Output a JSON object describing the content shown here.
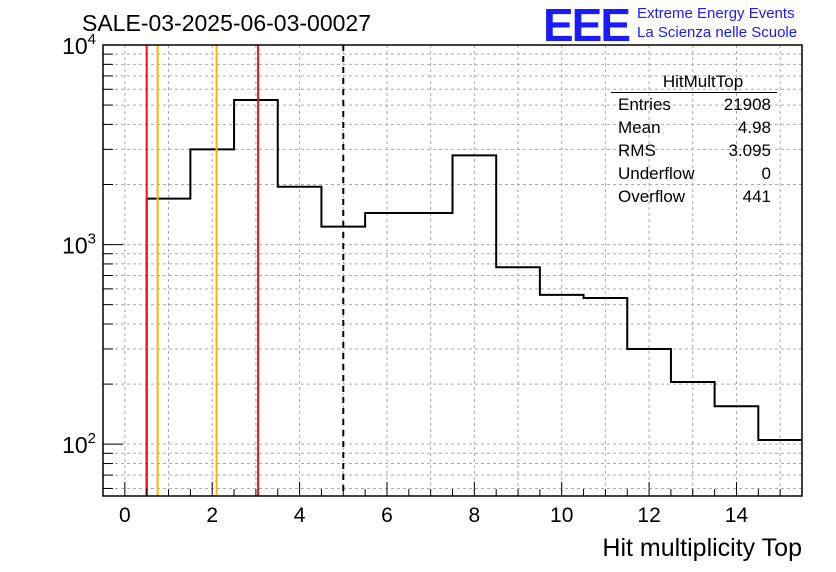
{
  "header": {
    "title": "SALE-03-2025-06-03-00027",
    "logo": "EEE",
    "logo_line1": "Extreme Energy Events",
    "logo_line2": "La Scienza nelle Scuole"
  },
  "stats_box": {
    "title": "HitMultTop",
    "rows": [
      {
        "label": "Entries",
        "value": "21908"
      },
      {
        "label": "Mean",
        "value": "4.98"
      },
      {
        "label": "RMS",
        "value": "3.095"
      },
      {
        "label": "Underflow",
        "value": "0"
      },
      {
        "label": "Overflow",
        "value": "441"
      }
    ]
  },
  "colors": {
    "red_line": "#e8141c",
    "orange_line": "#f5b800",
    "histogram": "#000000",
    "grid": "#aaaaaa"
  },
  "chart_data": {
    "type": "histogram",
    "title": "SALE-03-2025-06-03-00027",
    "xlabel": "Hit multiplicity Top",
    "ylabel": "",
    "xlim": [
      -0.5,
      15.5
    ],
    "ylim": [
      55,
      10000
    ],
    "y_scale": "log",
    "grid": true,
    "x_ticks": [
      0,
      2,
      4,
      6,
      8,
      10,
      12,
      14
    ],
    "y_ticks": [
      {
        "base": "10",
        "exp": "2",
        "value": 100
      },
      {
        "base": "10",
        "exp": "3",
        "value": 1000
      },
      {
        "base": "10",
        "exp": "4",
        "value": 10000
      }
    ],
    "bins": [
      {
        "center": 1,
        "value": 1700
      },
      {
        "center": 2,
        "value": 3000
      },
      {
        "center": 3,
        "value": 5300
      },
      {
        "center": 4,
        "value": 1950
      },
      {
        "center": 5,
        "value": 1230
      },
      {
        "center": 6,
        "value": 1440
      },
      {
        "center": 7,
        "value": 1440
      },
      {
        "center": 8,
        "value": 2800
      },
      {
        "center": 9,
        "value": 770
      },
      {
        "center": 10,
        "value": 560
      },
      {
        "center": 11,
        "value": 540
      },
      {
        "center": 12,
        "value": 300
      },
      {
        "center": 13,
        "value": 205
      },
      {
        "center": 14,
        "value": 155
      },
      {
        "center": 15,
        "value": 105
      }
    ],
    "vertical_lines": [
      {
        "x": 0.5,
        "color": "red"
      },
      {
        "x": 0.75,
        "color": "orange"
      },
      {
        "x": 2.1,
        "color": "orange"
      },
      {
        "x": 3.05,
        "color": "red"
      },
      {
        "x": 5.0,
        "color": "black-dashed"
      }
    ]
  }
}
